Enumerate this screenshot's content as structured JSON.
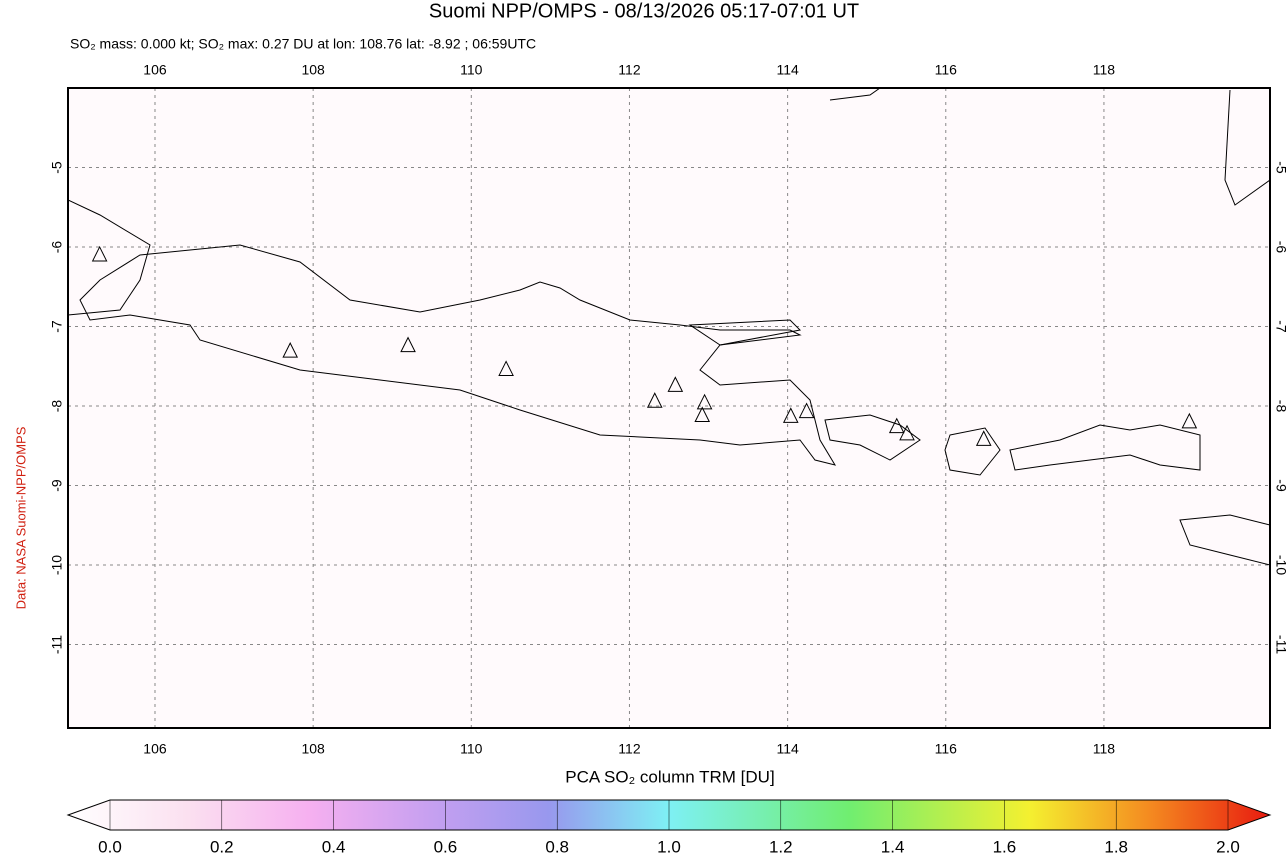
{
  "chart_data": {
    "type": "map",
    "title": "Suomi NPP/OMPS - 08/13/2026 05:17-07:01 UT",
    "subtitle": "SO₂ mass: 0.000 kt; SO₂ max: 0.27 DU at lon: 108.76 lat: -8.92 ; 06:59UTC",
    "side_note": "Data: NASA Suomi-NPP/OMPS",
    "xlim": [
      104.9,
      120.1
    ],
    "ylim": [
      -12.05,
      -4.0
    ],
    "xticks": [
      106,
      108,
      110,
      112,
      114,
      116,
      118
    ],
    "yticks": [
      -5,
      -6,
      -7,
      -8,
      -9,
      -10,
      -11
    ],
    "grid": true,
    "volcanoes": {
      "lon": [
        105.3,
        107.71,
        109.2,
        110.44,
        112.32,
        112.58,
        112.95,
        112.92,
        114.04,
        114.24,
        115.38,
        115.51,
        116.48,
        119.08
      ],
      "lat": [
        -6.1,
        -7.31,
        -7.24,
        -7.54,
        -7.94,
        -7.74,
        -7.96,
        -8.12,
        -8.13,
        -8.07,
        -8.26,
        -8.35,
        -8.42,
        -8.2
      ]
    },
    "colorbar": {
      "label": "PCA SO₂ column TRM [DU]",
      "lim": [
        0,
        2
      ],
      "ticks": [
        {
          "value": 0,
          "label": "0.0"
        },
        {
          "value": 0.2,
          "label": "0.2"
        },
        {
          "value": 0.4,
          "label": "0.4"
        },
        {
          "value": 0.6,
          "label": "0.6"
        },
        {
          "value": 0.8,
          "label": "0.8"
        },
        {
          "value": 1,
          "label": "1.0"
        },
        {
          "value": 1.2,
          "label": "1.2"
        },
        {
          "value": 1.4,
          "label": "1.4"
        },
        {
          "value": 1.6,
          "label": "1.6"
        },
        {
          "value": 1.8,
          "label": "1.8"
        },
        {
          "value": 2,
          "label": "2.0"
        }
      ]
    }
  }
}
